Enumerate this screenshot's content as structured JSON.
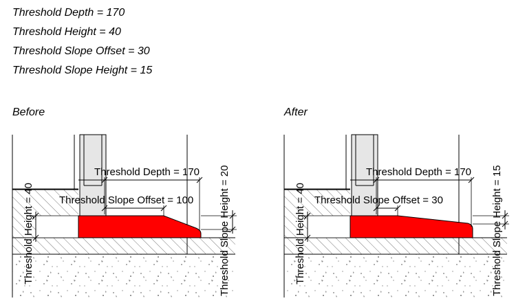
{
  "parameters": [
    "Threshold Depth = 170",
    "Threshold Height = 40",
    "Threshold Slope Offset = 30",
    "Threshold Slope Height = 15"
  ],
  "before": {
    "caption": "Before",
    "depth_label": "Threshold Depth = 170",
    "slope_offset_label": "Threshold Slope Offset = 100",
    "height_label": "Threshold Height = 40",
    "slope_height_label": "Threshold Slope Height = 20"
  },
  "after": {
    "caption": "After",
    "depth_label": "Threshold Depth = 170",
    "slope_offset_label": "Threshold Slope Offset = 30",
    "height_label": "Threshold Height = 40",
    "slope_height_label": "Threshold Slope Height = 15"
  },
  "colors": {
    "threshold": "#ff0000",
    "wall_fill": "#e6e6e6",
    "line": "#000000",
    "hatch": "#555555"
  }
}
